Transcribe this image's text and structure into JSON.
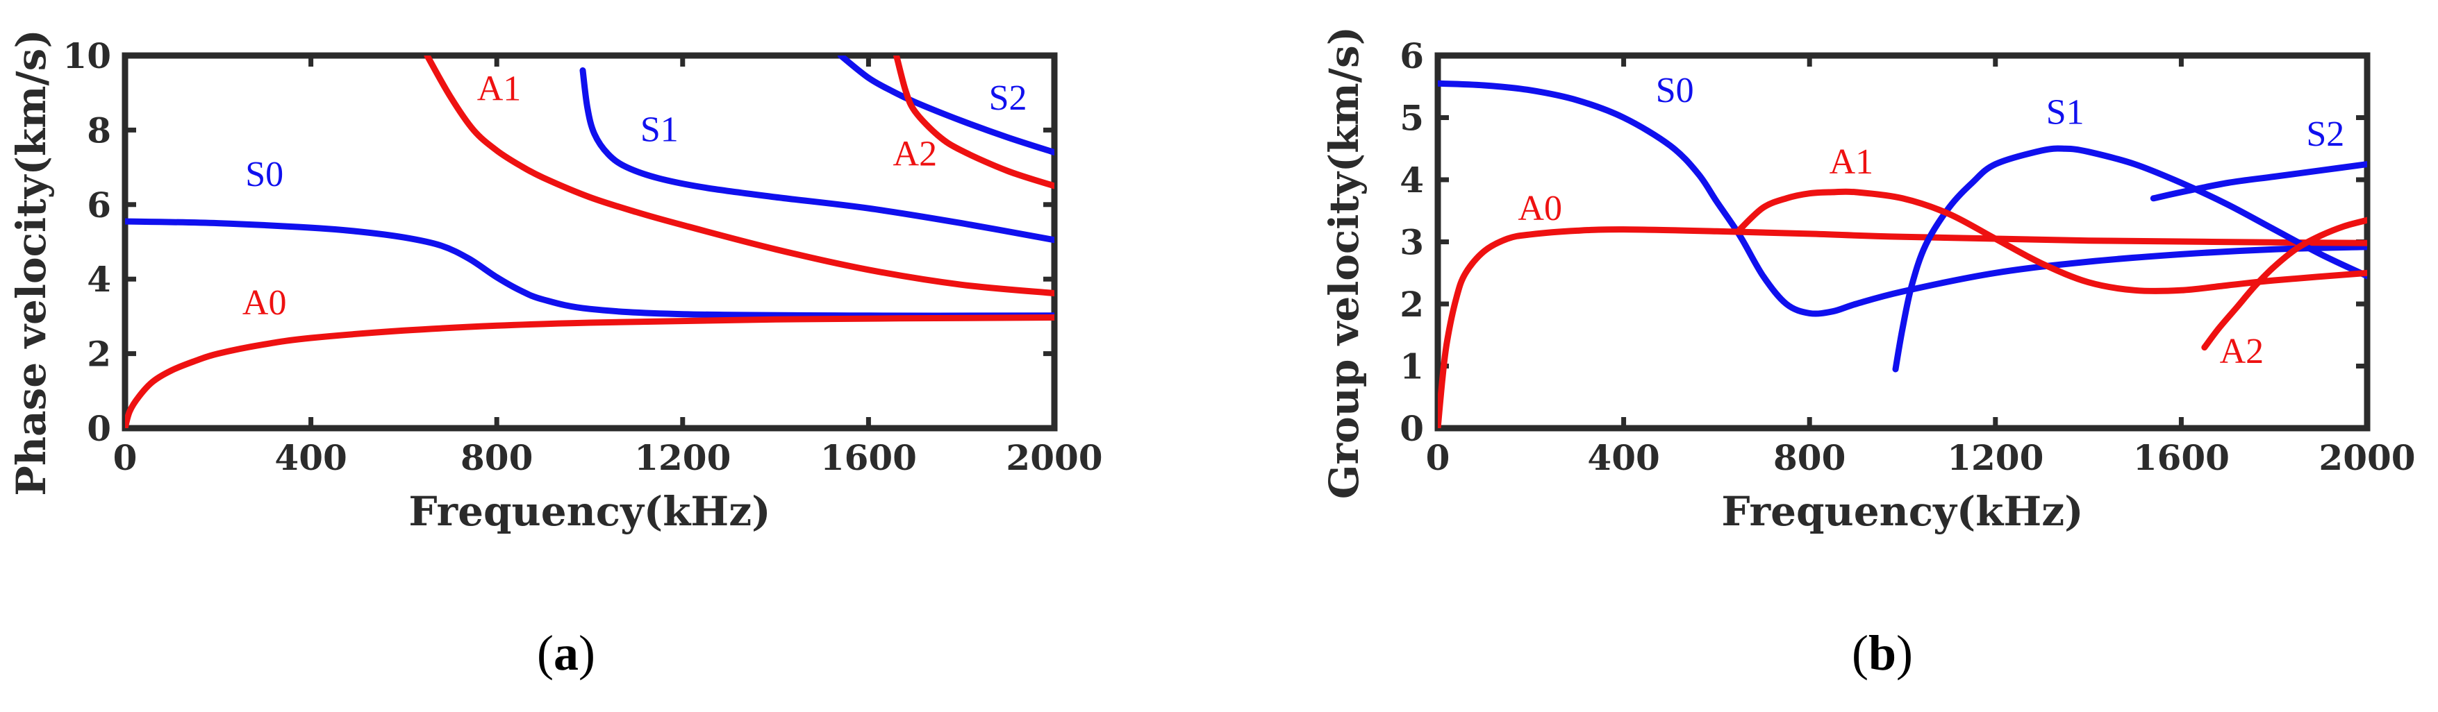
{
  "colors": {
    "S": "#1010ee",
    "A": "#ee1111",
    "axis": "#2b2b2b"
  },
  "chart_data": [
    {
      "type": "line",
      "caption_letter": "a",
      "xlabel": "Frequency(kHz)",
      "ylabel": "Phase velocity(km/s)",
      "xlim": [
        0,
        2000
      ],
      "ylim": [
        0,
        10
      ],
      "xticks": [
        "0",
        "400",
        "800",
        "1200",
        "1600",
        "2000"
      ],
      "xtick_values": [
        0,
        400,
        800,
        1200,
        1600,
        2000
      ],
      "yticks": [
        "0",
        "2",
        "4",
        "6",
        "8",
        "10"
      ],
      "ytick_values": [
        0,
        2,
        4,
        6,
        8,
        10
      ],
      "series": [
        {
          "name": "S0",
          "color": "S",
          "label_at": [
            300,
            6.5
          ],
          "x": [
            0,
            200,
            400,
            500,
            600,
            680,
            740,
            800,
            850,
            900,
            1000,
            1200,
            1600,
            2000
          ],
          "y": [
            5.55,
            5.5,
            5.38,
            5.28,
            5.12,
            4.9,
            4.55,
            4.05,
            3.7,
            3.45,
            3.2,
            3.06,
            3.02,
            3.02
          ]
        },
        {
          "name": "A0",
          "color": "A",
          "label_at": [
            300,
            3.05
          ],
          "x": [
            0,
            10,
            30,
            60,
            100,
            150,
            200,
            300,
            400,
            600,
            800,
            1000,
            1400,
            2000
          ],
          "y": [
            0,
            0.45,
            0.85,
            1.25,
            1.55,
            1.8,
            2.0,
            2.25,
            2.42,
            2.62,
            2.75,
            2.83,
            2.92,
            2.97
          ]
        },
        {
          "name": "S1",
          "color": "S",
          "label_at": [
            1150,
            7.7
          ],
          "x": [
            985,
            995,
            1010,
            1040,
            1080,
            1150,
            1250,
            1400,
            1600,
            1800,
            2000
          ],
          "y": [
            9.6,
            8.6,
            7.9,
            7.35,
            7.0,
            6.7,
            6.45,
            6.2,
            5.9,
            5.5,
            5.05
          ]
        },
        {
          "name": "A1",
          "color": "A",
          "label_at": [
            805,
            8.8
          ],
          "x": [
            650,
            700,
            750,
            800,
            850,
            900,
            1000,
            1100,
            1200,
            1400,
            1600,
            1800,
            2000
          ],
          "y": [
            10.0,
            8.9,
            8.0,
            7.45,
            7.05,
            6.72,
            6.2,
            5.8,
            5.45,
            4.8,
            4.25,
            3.85,
            3.62
          ]
        },
        {
          "name": "S2",
          "color": "S",
          "label_at": [
            1900,
            8.55
          ],
          "x": [
            1540,
            1600,
            1650,
            1700,
            1800,
            1900,
            2000
          ],
          "y": [
            10.0,
            9.4,
            9.05,
            8.75,
            8.25,
            7.8,
            7.4
          ]
        },
        {
          "name": "A2",
          "color": "A",
          "label_at": [
            1700,
            7.05
          ],
          "x": [
            1660,
            1680,
            1700,
            1750,
            1800,
            1900,
            2000
          ],
          "y": [
            10.0,
            9.05,
            8.5,
            7.85,
            7.45,
            6.9,
            6.5
          ]
        }
      ]
    },
    {
      "type": "line",
      "caption_letter": "b",
      "xlabel": "Frequency(kHz)",
      "ylabel": "Group velocity(km/s)",
      "xlim": [
        0,
        2000
      ],
      "ylim": [
        0,
        6
      ],
      "xticks": [
        "0",
        "400",
        "800",
        "1200",
        "1600",
        "2000"
      ],
      "xtick_values": [
        0,
        400,
        800,
        1200,
        1600,
        2000
      ],
      "yticks": [
        "0",
        "1",
        "2",
        "3",
        "4",
        "5",
        "6"
      ],
      "ytick_values": [
        0,
        1,
        2,
        3,
        4,
        5,
        6
      ],
      "series": [
        {
          "name": "S0",
          "color": "S",
          "label_at": [
            510,
            5.25
          ],
          "x": [
            0,
            100,
            200,
            300,
            400,
            500,
            560,
            600,
            650,
            700,
            750,
            800,
            850,
            900,
            1000,
            1200,
            1400,
            1600,
            1800,
            2000
          ],
          "y": [
            5.55,
            5.52,
            5.44,
            5.28,
            5.0,
            4.55,
            4.1,
            3.65,
            3.1,
            2.45,
            2.0,
            1.85,
            1.88,
            2.0,
            2.2,
            2.5,
            2.68,
            2.8,
            2.88,
            2.92
          ]
        },
        {
          "name": "A0",
          "color": "A",
          "label_at": [
            220,
            3.35
          ],
          "x": [
            0,
            10,
            20,
            40,
            60,
            100,
            150,
            200,
            300,
            400,
            600,
            800,
            1000,
            1400,
            2000
          ],
          "y": [
            0,
            0.8,
            1.4,
            2.1,
            2.5,
            2.85,
            3.05,
            3.12,
            3.18,
            3.2,
            3.17,
            3.13,
            3.08,
            3.02,
            2.98
          ]
        },
        {
          "name": "S1",
          "color": "S",
          "label_at": [
            1350,
            4.9
          ],
          "x": [
            985,
            1000,
            1020,
            1050,
            1100,
            1150,
            1200,
            1300,
            1350,
            1400,
            1500,
            1600,
            1700,
            1800,
            1900,
            2000
          ],
          "y": [
            0.95,
            1.6,
            2.3,
            2.95,
            3.55,
            3.95,
            4.25,
            4.47,
            4.5,
            4.45,
            4.25,
            3.95,
            3.6,
            3.2,
            2.8,
            2.45
          ]
        },
        {
          "name": "A1",
          "color": "A",
          "label_at": [
            890,
            4.1
          ],
          "x": [
            650,
            700,
            750,
            800,
            850,
            900,
            1000,
            1100,
            1200,
            1300,
            1400,
            1500,
            1600,
            1700,
            1800,
            2000
          ],
          "y": [
            3.2,
            3.55,
            3.7,
            3.78,
            3.8,
            3.8,
            3.7,
            3.45,
            3.05,
            2.65,
            2.35,
            2.22,
            2.22,
            2.3,
            2.38,
            2.5
          ]
        },
        {
          "name": "S2",
          "color": "S",
          "label_at": [
            1910,
            4.55
          ],
          "x": [
            1540,
            1600,
            1700,
            1800,
            1900,
            2000
          ],
          "y": [
            3.7,
            3.8,
            3.95,
            4.05,
            4.15,
            4.25
          ]
        },
        {
          "name": "A2",
          "color": "A",
          "label_at": [
            1730,
            1.05
          ],
          "x": [
            1650,
            1680,
            1720,
            1760,
            1800,
            1850,
            1900,
            1950,
            2000
          ],
          "y": [
            1.3,
            1.6,
            1.95,
            2.3,
            2.6,
            2.9,
            3.1,
            3.25,
            3.35
          ]
        }
      ]
    }
  ]
}
